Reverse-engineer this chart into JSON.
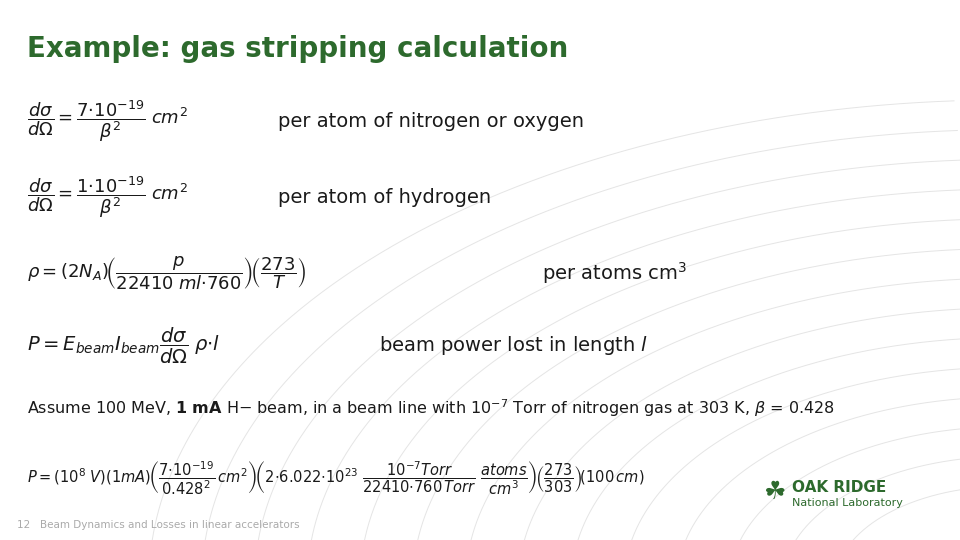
{
  "title": "Example: gas stripping calculation",
  "title_color": "#2d6a2d",
  "title_fontsize": 20,
  "bg_color": "#ffffff",
  "text_color": "#1a1a1a",
  "footer_number": "12",
  "footer_text": "Beam Dynamics and Losses in linear accelerators",
  "footer_color": "#aaaaaa",
  "ornl_color": "#2d6a2d",
  "arc_color": "#e0e0e0",
  "math_fontsize": 13,
  "text_fontsize": 14,
  "assume_fontsize": 11.5,
  "last_math_fontsize": 10.5
}
